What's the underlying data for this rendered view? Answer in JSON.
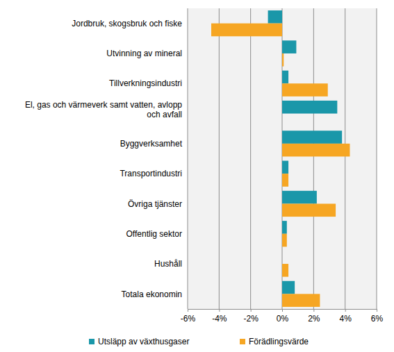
{
  "chart_data": {
    "type": "bar",
    "orientation": "horizontal",
    "categories": [
      "Jordbruk, skogsbruk och fiske",
      "Utvinning av mineral",
      "Tillverkningsindustri",
      "El, gas och värmeverk samt vatten, avlopp och avfall",
      "Byggverksamhet",
      "Transportindustri",
      "Övriga tjänster",
      "Offentlig sektor",
      "Hushåll",
      "Totala ekonomin"
    ],
    "series": [
      {
        "name": "Utsläpp av växthusgaser",
        "color": "#1a97a9",
        "values": [
          -0.9,
          0.9,
          0.4,
          3.5,
          3.8,
          0.4,
          2.2,
          0.3,
          0,
          0.8
        ]
      },
      {
        "name": "Förädlingsvärde",
        "color": "#f6a623",
        "values": [
          -4.5,
          0.1,
          2.9,
          0,
          4.3,
          0.4,
          3.4,
          0.3,
          0.4,
          2.4
        ]
      }
    ],
    "xlim": [
      -6,
      6
    ],
    "xticks": [
      {
        "value": -6,
        "label": "-6%"
      },
      {
        "value": -4,
        "label": "-4%"
      },
      {
        "value": -2,
        "label": "-2%"
      },
      {
        "value": 0,
        "label": "0%"
      },
      {
        "value": 2,
        "label": "2%"
      },
      {
        "value": 4,
        "label": "4%"
      },
      {
        "value": 6,
        "label": "6%"
      }
    ],
    "grid": true,
    "legend": "bottom"
  }
}
